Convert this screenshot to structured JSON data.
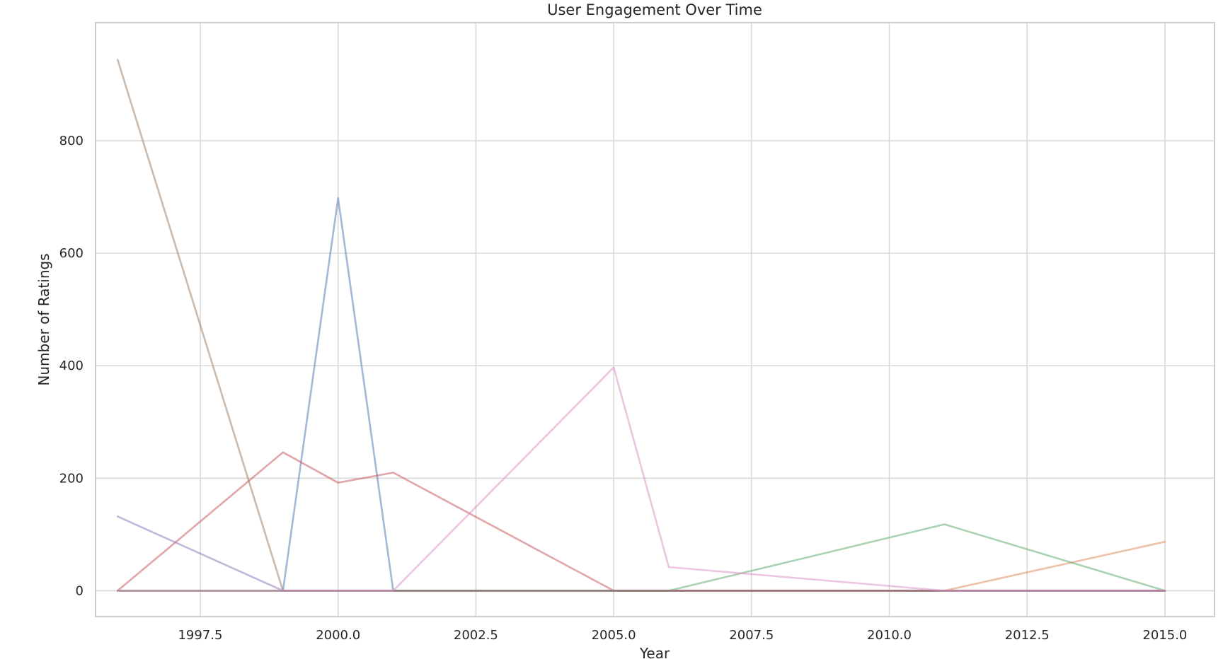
{
  "chart_data": {
    "type": "line",
    "title": "User Engagement Over Time",
    "xlabel": "Year",
    "ylabel": "Number of Ratings",
    "xlim": [
      1995.6,
      2015.9
    ],
    "ylim": [
      -46,
      1010
    ],
    "x_ticks": [
      1997.5,
      2000.0,
      2002.5,
      2005.0,
      2007.5,
      2010.0,
      2012.5,
      2015.0
    ],
    "x_tick_labels": [
      "1997.5",
      "2000.0",
      "2002.5",
      "2005.0",
      "2007.5",
      "2010.0",
      "2012.5",
      "2015.0"
    ],
    "y_ticks": [
      0,
      200,
      400,
      600,
      800
    ],
    "y_tick_labels": [
      "0",
      "200",
      "400",
      "600",
      "800"
    ],
    "grid": true,
    "legend": "none",
    "x": [
      1996,
      1999,
      2000,
      2001,
      2005,
      2006,
      2011,
      2015
    ],
    "series": [
      {
        "color": "#4c72b0",
        "values": [
          0,
          0,
          698,
          0,
          0,
          0,
          0,
          0
        ]
      },
      {
        "color": "#dd8452",
        "values": [
          0,
          0,
          0,
          0,
          0,
          0,
          0,
          87
        ]
      },
      {
        "color": "#55a868",
        "values": [
          0,
          0,
          0,
          0,
          0,
          0,
          118,
          0
        ]
      },
      {
        "color": "#c44e52",
        "values": [
          0,
          246,
          192,
          210,
          0,
          0,
          0,
          0
        ]
      },
      {
        "color": "#8172b3",
        "values": [
          132,
          0,
          0,
          0,
          0,
          0,
          0,
          0
        ]
      },
      {
        "color": "#937860",
        "values": [
          944,
          0,
          0,
          0,
          0,
          0,
          0,
          0
        ]
      },
      {
        "color": "#da8bc3",
        "values": [
          0,
          0,
          0,
          0,
          397,
          42,
          0,
          0
        ]
      }
    ]
  }
}
